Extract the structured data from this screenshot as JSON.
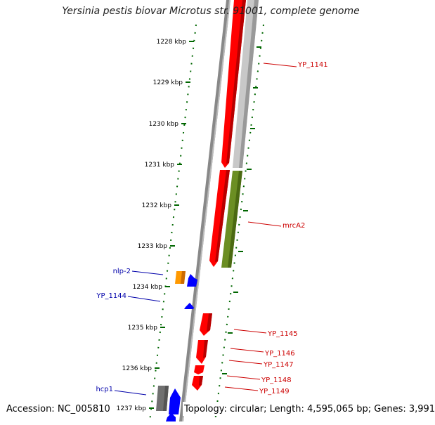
{
  "title": "Yersinia pestis biovar Microtus str. 91001, complete genome",
  "accession": "Accession: NC_005810",
  "topology": "Topology: circular; Length: 4,595,065 bp; Genes: 3,991",
  "colors": {
    "forward_gene": "#ff0000",
    "reverse_gene": "#0000ff",
    "forward_label": "#cc0000",
    "reverse_label": "#0000aa",
    "orange_gene": "#ff9900",
    "green_gene": "#6b8e23",
    "gray_gene": "#c0c0c0",
    "dark_gray_gene": "#707070",
    "tick": "#006600"
  },
  "ticks": [
    "1228 kbp",
    "1229 kbp",
    "1230 kbp",
    "1231 kbp",
    "1232 kbp",
    "1233 kbp",
    "1234 kbp",
    "1235 kbp",
    "1236 kbp",
    "1237 kbp"
  ],
  "gene_labels": [
    {
      "name": "YP_1141",
      "strand": "forward"
    },
    {
      "name": "mrcA2",
      "strand": "forward"
    },
    {
      "name": "YP_1145",
      "strand": "forward"
    },
    {
      "name": "YP_1146",
      "strand": "forward"
    },
    {
      "name": "YP_1147",
      "strand": "forward"
    },
    {
      "name": "YP_1148",
      "strand": "forward"
    },
    {
      "name": "YP_1149",
      "strand": "forward"
    },
    {
      "name": "nlp-2",
      "strand": "reverse"
    },
    {
      "name": "YP_1144",
      "strand": "reverse"
    },
    {
      "name": "hcp1",
      "strand": "reverse"
    }
  ]
}
